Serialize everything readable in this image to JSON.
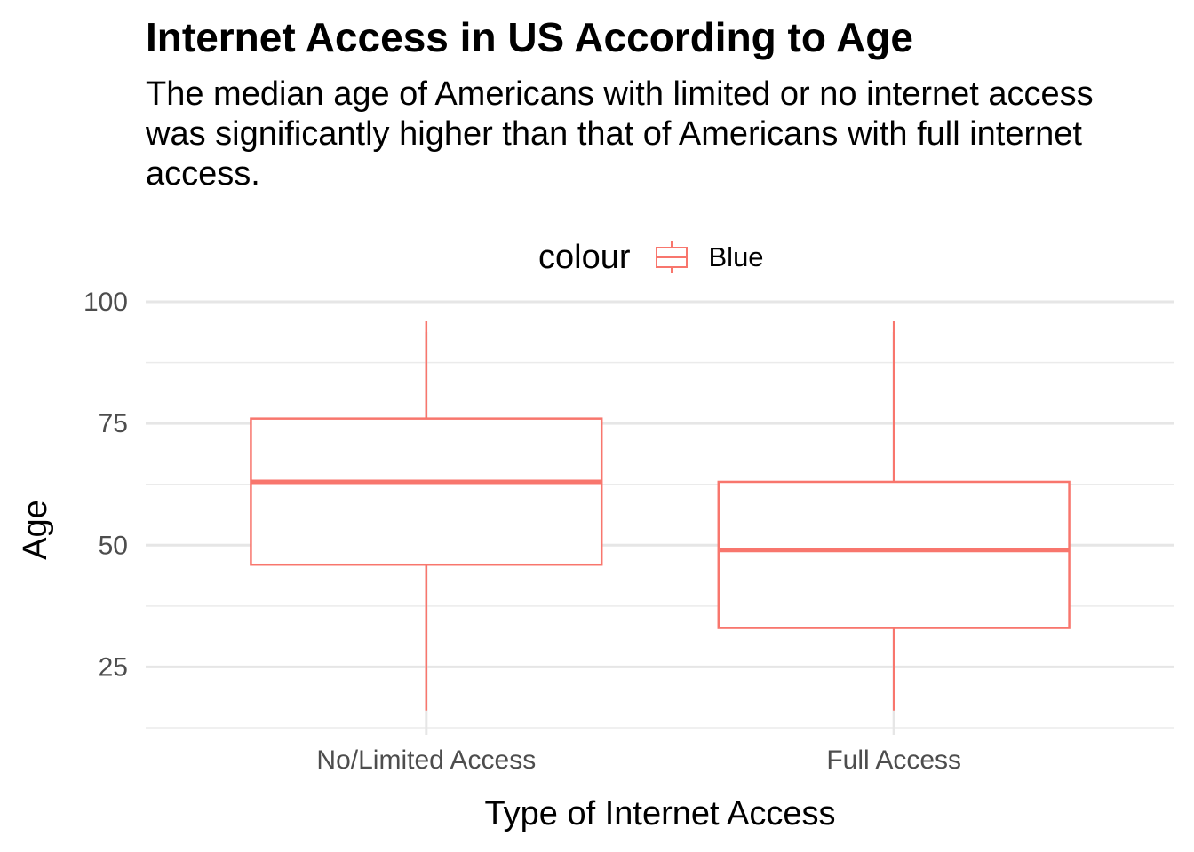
{
  "chart_data": {
    "type": "boxplot",
    "title": "Internet Access in US According to Age",
    "subtitle": "The median age of Americans with limited or no internet access was significantly higher than that of Americans with full internet access.",
    "xlabel": "Type of Internet Access",
    "ylabel": "Age",
    "ylim": [
      12.5,
      100
    ],
    "yticks": [
      25,
      50,
      75,
      100
    ],
    "categories": [
      "No/Limited Access",
      "Full Access"
    ],
    "boxes": [
      {
        "category": "No/Limited Access",
        "min": 16,
        "q1": 46,
        "median": 63,
        "q3": 76,
        "max": 96
      },
      {
        "category": "Full Access",
        "min": 16,
        "q1": 33,
        "median": 49,
        "q3": 63,
        "max": 96
      }
    ],
    "color": "#F8766D",
    "legend": {
      "title": "colour",
      "entries": [
        "Blue"
      ],
      "position": "top"
    },
    "grid": true
  }
}
